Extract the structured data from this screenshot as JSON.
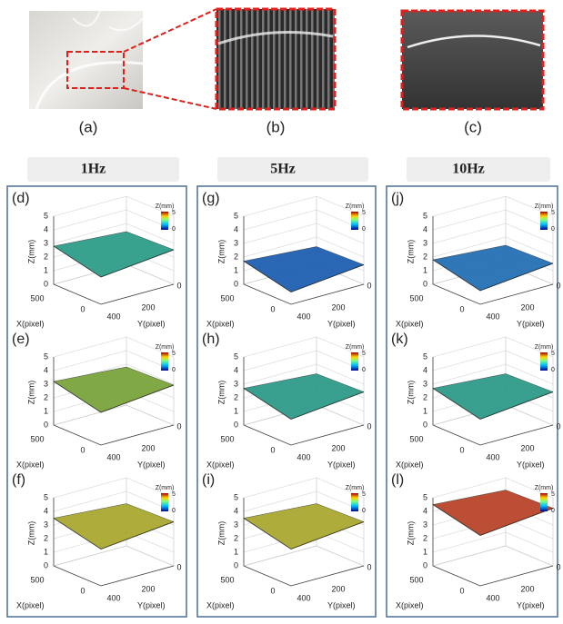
{
  "images": [
    {
      "label": "(a)"
    },
    {
      "label": "(b)"
    },
    {
      "label": "(c)"
    }
  ],
  "axes": {
    "z_label": "Z(mm)",
    "z_ticks": [
      0,
      1,
      2,
      3,
      4,
      5
    ],
    "x_label": "X(pixel)",
    "x_ticks": [
      500,
      0
    ],
    "y_label": "Y(pixel)",
    "y_ticks": [
      400,
      200,
      0
    ],
    "colorbar": {
      "label": "Z(mm)",
      "ticks": [
        5,
        0
      ]
    }
  },
  "columns": [
    {
      "header": "1Hz",
      "panels": [
        {
          "label": "(d)",
          "z": 2.8,
          "color": "#2e9e8a"
        },
        {
          "label": "(e)",
          "z": 3.2,
          "color": "#7aa53c"
        },
        {
          "label": "(f)",
          "z": 3.5,
          "color": "#aaa830"
        }
      ]
    },
    {
      "header": "5Hz",
      "panels": [
        {
          "label": "(g)",
          "z": 1.7,
          "color": "#1f5fb0"
        },
        {
          "label": "(h)",
          "z": 2.7,
          "color": "#2f9a88"
        },
        {
          "label": "(i)",
          "z": 3.5,
          "color": "#aaa830"
        }
      ]
    },
    {
      "header": "10Hz",
      "panels": [
        {
          "label": "(j)",
          "z": 1.8,
          "color": "#2570b5"
        },
        {
          "label": "(k)",
          "z": 2.7,
          "color": "#2f9a88"
        },
        {
          "label": "(l)",
          "z": 4.5,
          "color": "#b8452a"
        }
      ]
    }
  ]
}
